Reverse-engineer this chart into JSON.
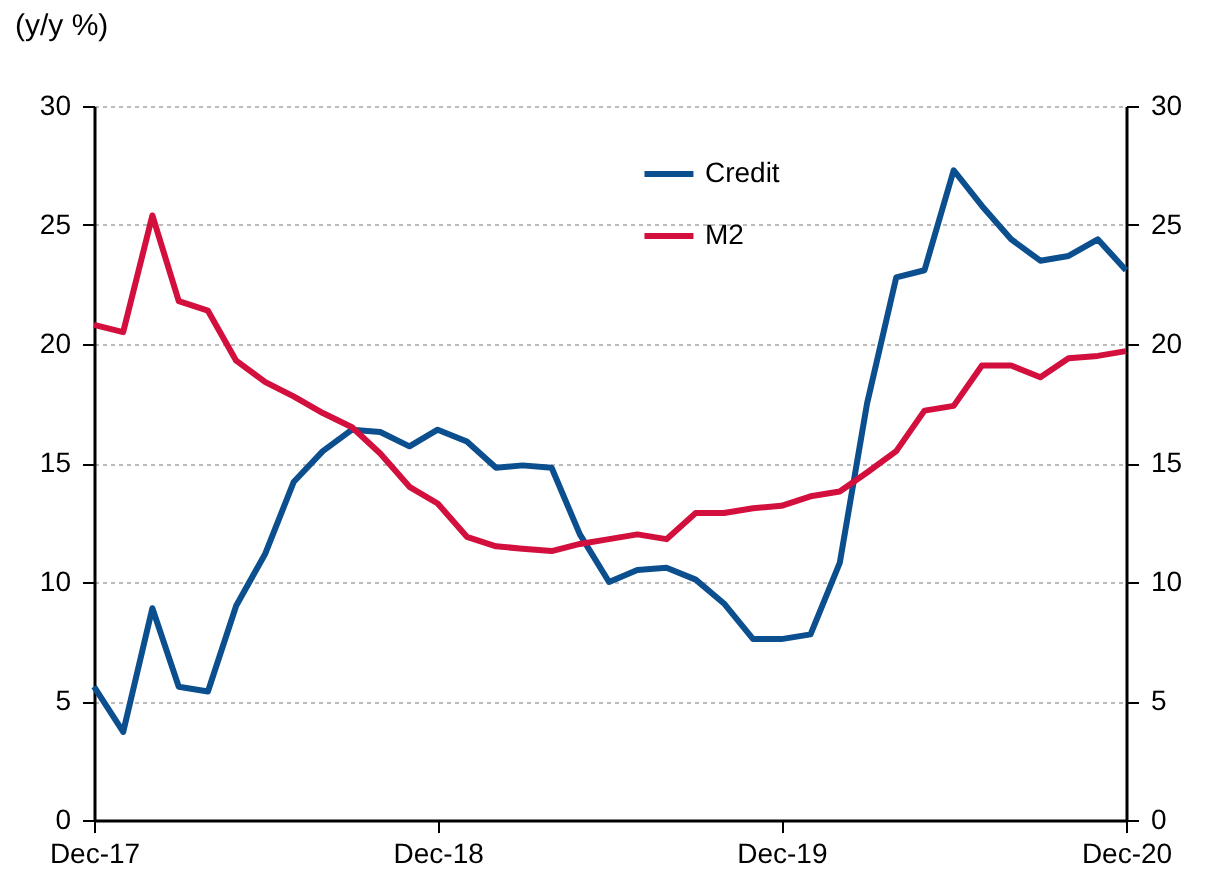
{
  "chart_data": {
    "type": "line",
    "ylabel": "(y/y %)",
    "x": [
      "2017-12",
      "2018-01",
      "2018-02",
      "2018-03",
      "2018-04",
      "2018-05",
      "2018-06",
      "2018-07",
      "2018-08",
      "2018-09",
      "2018-10",
      "2018-11",
      "2018-12",
      "2019-01",
      "2019-02",
      "2019-03",
      "2019-04",
      "2019-05",
      "2019-06",
      "2019-07",
      "2019-08",
      "2019-09",
      "2019-10",
      "2019-11",
      "2019-12",
      "2020-01",
      "2020-02",
      "2020-03",
      "2020-04",
      "2020-05",
      "2020-06",
      "2020-07",
      "2020-08",
      "2020-09",
      "2020-10",
      "2020-11",
      "2020-12"
    ],
    "series": [
      {
        "name": "Credit",
        "color": "#0b4f8e",
        "values": [
          5.6,
          3.7,
          8.9,
          5.6,
          5.4,
          9.0,
          11.2,
          14.2,
          15.5,
          16.4,
          16.3,
          15.7,
          16.4,
          15.9,
          14.8,
          14.9,
          14.8,
          12.0,
          10.0,
          10.5,
          10.6,
          10.1,
          9.1,
          7.6,
          7.6,
          7.8,
          10.8,
          17.5,
          22.8,
          23.1,
          27.3,
          25.8,
          24.4,
          23.5,
          23.7,
          24.4,
          23.1
        ]
      },
      {
        "name": "M2",
        "color": "#d20f3d",
        "values": [
          20.8,
          20.5,
          25.4,
          21.8,
          21.4,
          19.3,
          18.4,
          17.8,
          17.1,
          16.5,
          15.4,
          14.0,
          13.3,
          11.9,
          11.5,
          11.4,
          11.3,
          11.6,
          11.8,
          12.0,
          11.8,
          12.9,
          12.9,
          13.1,
          13.2,
          13.6,
          13.8,
          14.6,
          15.5,
          17.2,
          17.4,
          19.1,
          19.1,
          18.6,
          19.4,
          19.5,
          19.7
        ]
      }
    ],
    "xlim": [
      "2017-12",
      "2020-12"
    ],
    "xticks": [
      {
        "value": "2017-12",
        "label": "Dec-17"
      },
      {
        "value": "2018-12",
        "label": "Dec-18"
      },
      {
        "value": "2019-12",
        "label": "Dec-19"
      },
      {
        "value": "2020-12",
        "label": "Dec-20"
      }
    ],
    "ylim": [
      0,
      30
    ],
    "yticks": [
      0,
      5,
      10,
      15,
      20,
      25,
      30
    ],
    "y2lim": [
      0,
      30
    ],
    "y2ticks": [
      0,
      5,
      10,
      15,
      20,
      25,
      30
    ],
    "grid": "y",
    "legend": "top",
    "line_style": "solid",
    "marker": "none"
  }
}
